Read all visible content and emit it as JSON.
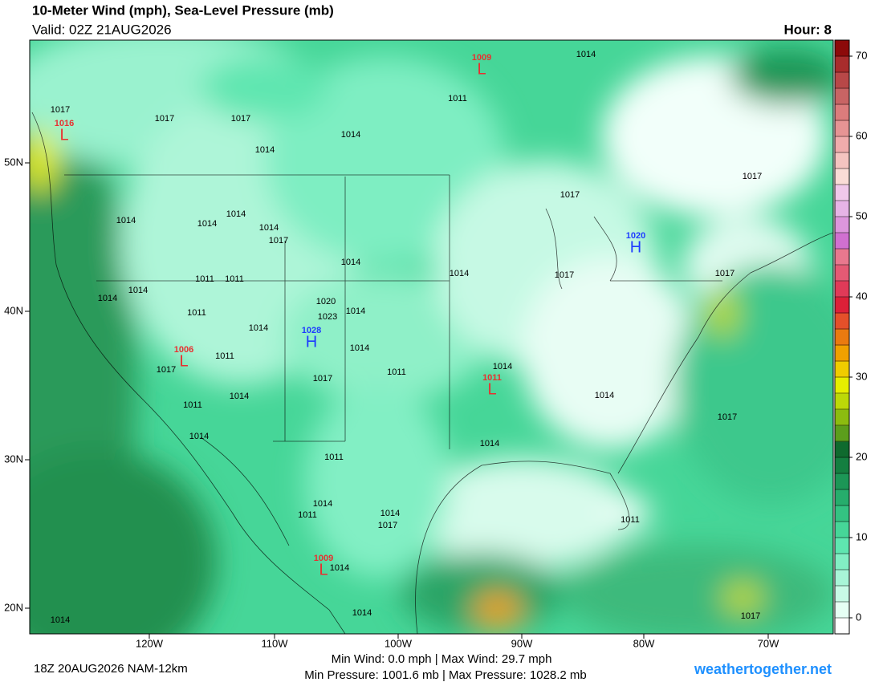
{
  "header": {
    "title": "10-Meter Wind (mph), Sea-Level Pressure (mb)",
    "valid": "Valid: 02Z 21AUG2026",
    "hour": "Hour: 8"
  },
  "axes": {
    "lat_labels": [
      "50N",
      "40N",
      "30N",
      "20N"
    ],
    "lon_labels": [
      "120W",
      "110W",
      "100W",
      "90W",
      "80W",
      "70W"
    ]
  },
  "colorbar": {
    "range": [
      -2,
      72
    ],
    "ticks": [
      0,
      10,
      20,
      30,
      40,
      50,
      60,
      70
    ],
    "colors": [
      "#ffffff",
      "#e6fff4",
      "#c8fae6",
      "#a8f5d7",
      "#82efc4",
      "#5fe6b0",
      "#46d698",
      "#34c282",
      "#26ad6c",
      "#1c9656",
      "#147f40",
      "#0f6a2e",
      "#5c9e1c",
      "#8cbc10",
      "#bcd808",
      "#e6ee00",
      "#f0cc00",
      "#f0a000",
      "#ea7a10",
      "#e4502a",
      "#dc2038",
      "#e03a58",
      "#e45a74",
      "#e8788e",
      "#d070d0",
      "#dc96dc",
      "#e6b4e6",
      "#f0c8ea",
      "#fadcd6",
      "#f5c4c0",
      "#f0acac",
      "#e69494",
      "#dc7c7c",
      "#c86464",
      "#b84848",
      "#a82c2c",
      "#8c0a0a"
    ]
  },
  "isobar_labels": [
    "1014",
    "1017",
    "1017",
    "1017",
    "1014",
    "1011",
    "1014",
    "1017",
    "1017",
    "1014",
    "1014",
    "1014",
    "1014",
    "1017",
    "1014",
    "1014",
    "1017",
    "1017",
    "1014",
    "1014",
    "1011",
    "1011",
    "1011",
    "1020",
    "1023",
    "1014",
    "1014",
    "1014",
    "1011",
    "1017",
    "1017",
    "1014",
    "1011",
    "1011",
    "1014",
    "1014",
    "1017",
    "1014",
    "1014",
    "1011",
    "1014",
    "1011",
    "1014",
    "1017",
    "1014",
    "1014",
    "1014",
    "1017",
    "1011"
  ],
  "pressure_centers": [
    {
      "symbol": "L",
      "value": "1009"
    },
    {
      "symbol": "L",
      "value": "1016"
    },
    {
      "symbol": "H",
      "value": "1020"
    },
    {
      "symbol": "H",
      "value": "1028"
    },
    {
      "symbol": "L",
      "value": "1006"
    },
    {
      "symbol": "L",
      "value": "1011"
    },
    {
      "symbol": "L",
      "value": "1009"
    }
  ],
  "footer": {
    "run": "18Z 20AUG2026 NAM-12km",
    "wind_stats": "Min Wind:  0.0 mph | Max Wind: 29.7 mph",
    "pressure_stats": "Min Pressure: 1001.6 mb | Max Pressure: 1028.2 mb",
    "site": "weathertogether.net"
  }
}
